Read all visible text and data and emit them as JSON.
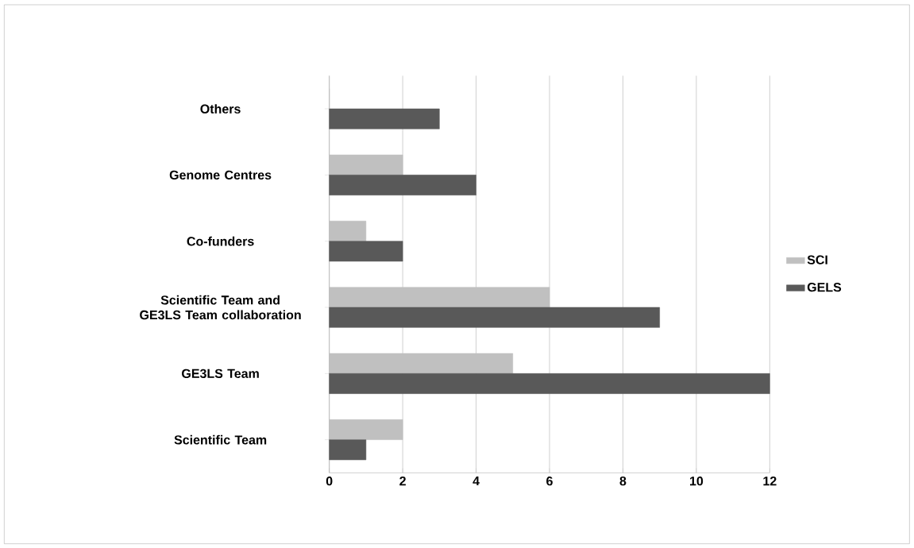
{
  "chart_data": {
    "type": "bar",
    "orientation": "horizontal",
    "categories": [
      "Others",
      "Genome Centres",
      "Co-funders",
      "Scientific Team and GE3LS Team collaboration",
      "GE3LS Team",
      "Scientific Team"
    ],
    "series": [
      {
        "name": "SCI",
        "color": "#c0c0c0",
        "values": [
          0,
          2,
          1,
          6,
          5,
          2
        ]
      },
      {
        "name": "GELS",
        "color": "#595959",
        "values": [
          3,
          4,
          2,
          9,
          12,
          1
        ]
      }
    ],
    "xlim": [
      0,
      12
    ],
    "xticks": [
      0,
      2,
      4,
      6,
      8,
      10,
      12
    ],
    "grid": "x",
    "legend": "right"
  }
}
